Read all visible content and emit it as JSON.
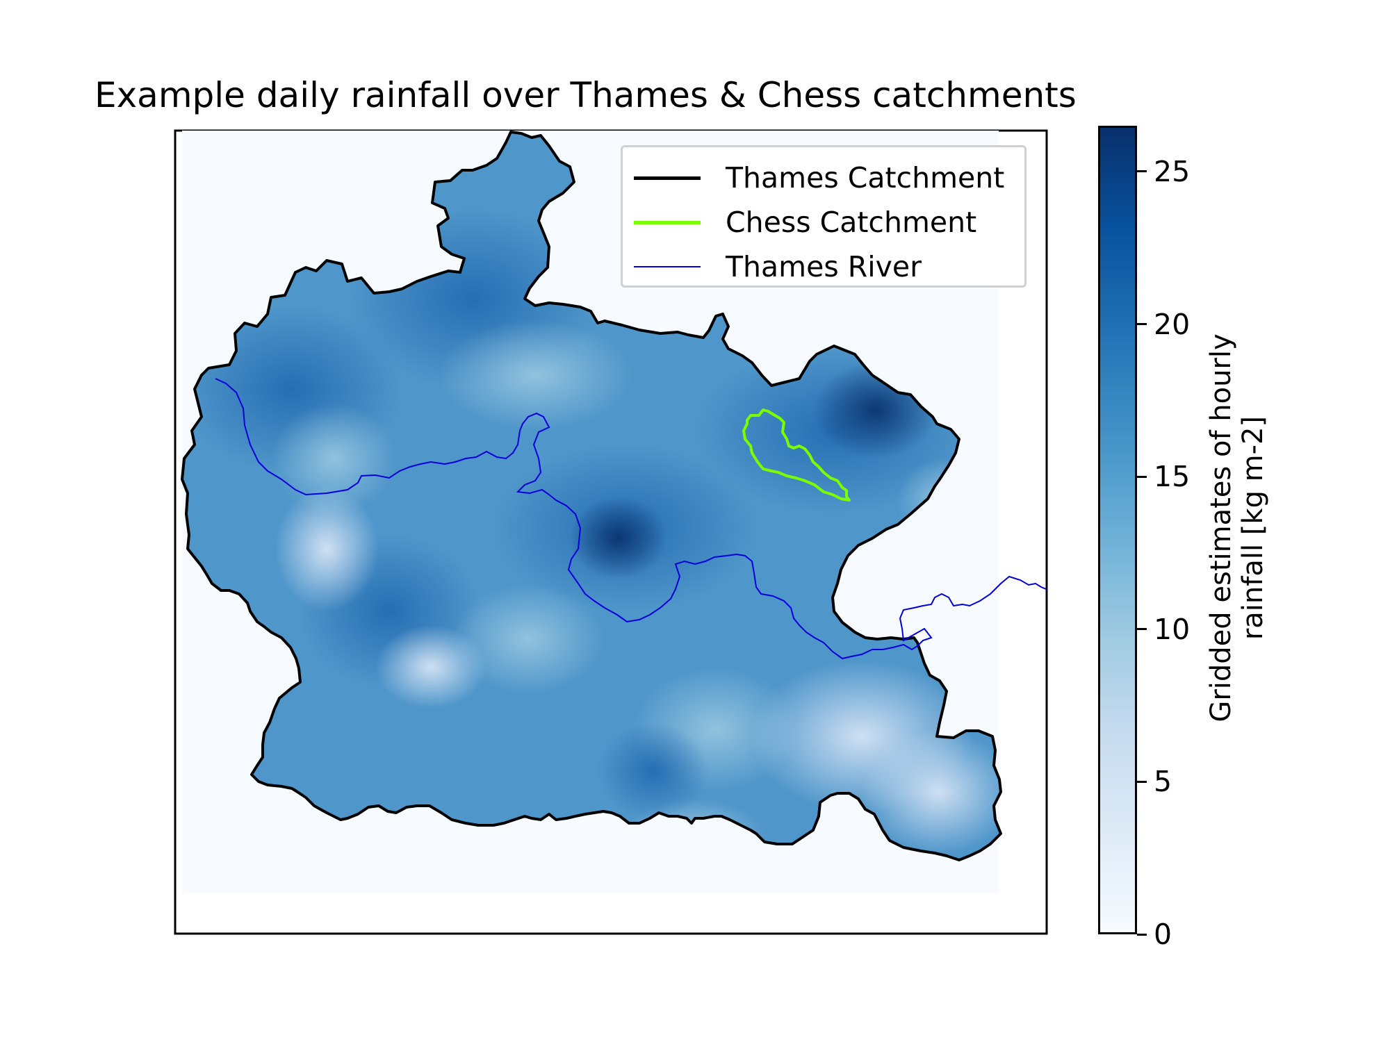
{
  "title": "Example daily rainfall over Thames & Chess catchments",
  "legend": {
    "items": [
      {
        "label": "Thames Catchment",
        "color": "#000000"
      },
      {
        "label": "Chess Catchment",
        "color": "#7cfc00"
      },
      {
        "label": "Thames River",
        "color": "#0000dd"
      }
    ]
  },
  "colorbar": {
    "label_line1": "Gridded estimates of hourly",
    "label_line2": "rainfall [kg m-2]",
    "ticks": [
      "0",
      "5",
      "10",
      "15",
      "20",
      "25"
    ],
    "range": [
      0,
      26.5
    ],
    "colormap": "Blues"
  },
  "colors": {
    "background_outside": "#f7fbff",
    "catchment_outline": "#000000",
    "chess_outline": "#7cfc00",
    "river": "#0000dd"
  }
}
